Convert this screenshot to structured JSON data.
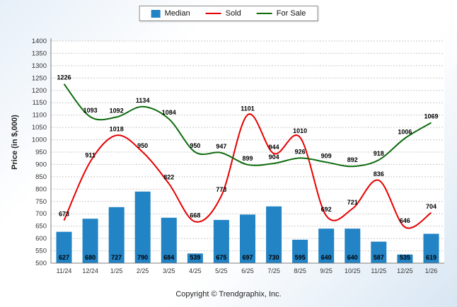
{
  "chart_data": {
    "type": "bar+line",
    "categories": [
      "11/24",
      "12/24",
      "1/25",
      "2/25",
      "3/25",
      "4/25",
      "5/25",
      "6/25",
      "7/25",
      "8/25",
      "9/25",
      "10/25",
      "11/25",
      "12/25",
      "1/26"
    ],
    "series": [
      {
        "name": "Median",
        "type": "bar",
        "color": "#2283c5",
        "values": [
          627,
          680,
          727,
          790,
          684,
          539,
          675,
          697,
          730,
          595,
          640,
          640,
          587,
          535,
          619
        ]
      },
      {
        "name": "Sold",
        "type": "line",
        "color": "#e60000",
        "values": [
          673,
          911,
          1018,
          950,
          822,
          668,
          773,
          1101,
          944,
          1010,
          692,
          721,
          836,
          646,
          704
        ]
      },
      {
        "name": "For Sale",
        "type": "line",
        "color": "#0e6b0e",
        "values": [
          1226,
          1093,
          1092,
          1134,
          1084,
          950,
          947,
          899,
          904,
          926,
          909,
          892,
          918,
          1006,
          1069
        ]
      }
    ],
    "title": "",
    "xlabel": "",
    "ylabel": "Price (in $,000)",
    "ylim": [
      500,
      1400
    ],
    "ytick_step": 50,
    "grid": true,
    "legend_position": "top"
  },
  "footer": {
    "copyright": "Copyright © Trendgraphix, Inc."
  }
}
